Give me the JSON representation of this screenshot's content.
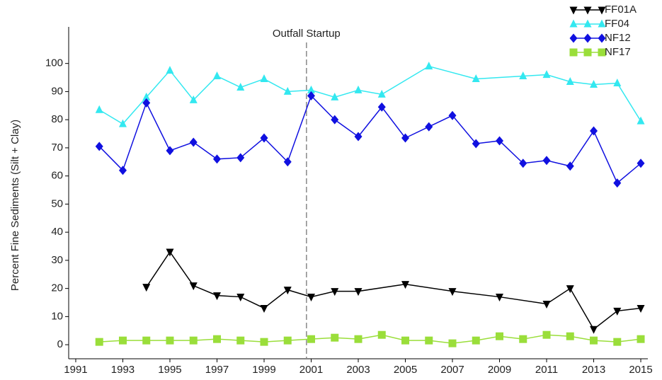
{
  "chart_data": {
    "type": "line",
    "y_label": "Percent Fine Sediments (Silt + Clay)",
    "xlim": [
      1990.7,
      2015.3
    ],
    "ylim": [
      -5,
      113
    ],
    "xticks": [
      1991,
      1993,
      1995,
      1997,
      1999,
      2001,
      2003,
      2005,
      2007,
      2009,
      2011,
      2013,
      2015
    ],
    "yticks": [
      0,
      10,
      20,
      30,
      40,
      50,
      60,
      70,
      80,
      90,
      100
    ],
    "legend": "top-right",
    "annotation": {
      "text": "Outfall Startup",
      "x": 2000.8
    },
    "series": [
      {
        "name": "FF01A",
        "color": "#000000",
        "symbol": "triangle-down",
        "x": [
          1994,
          1995,
          1996,
          1997,
          1998,
          1999,
          2000,
          2001,
          2002,
          2003,
          2005,
          2007,
          2009,
          2011,
          2012,
          2013,
          2014,
          2015
        ],
        "values": [
          20.5,
          33,
          21,
          17.5,
          17,
          13,
          19.5,
          17,
          19,
          19,
          21.5,
          19,
          17,
          14.5,
          20,
          5.5,
          12,
          13
        ]
      },
      {
        "name": "FF04",
        "color": "#33e8f0",
        "symbol": "triangle-up",
        "x": [
          1992,
          1993,
          1994,
          1995,
          1996,
          1997,
          1998,
          1999,
          2000,
          2001,
          2002,
          2003,
          2004,
          2006,
          2008,
          2010,
          2011,
          2012,
          2013,
          2014,
          2015
        ],
        "values": [
          83.5,
          78.5,
          88,
          97.5,
          87,
          95.5,
          91.5,
          94.5,
          90,
          90.5,
          88,
          90.5,
          89,
          99,
          94.5,
          95.5,
          96,
          93.5,
          92.5,
          93,
          79.5
        ]
      },
      {
        "name": "NF12",
        "color": "#1010e0",
        "symbol": "diamond",
        "x": [
          1992,
          1993,
          1994,
          1995,
          1996,
          1997,
          1998,
          1999,
          2000,
          2001,
          2002,
          2003,
          2004,
          2005,
          2006,
          2007,
          2008,
          2009,
          2010,
          2011,
          2012,
          2013,
          2014,
          2015
        ],
        "values": [
          70.5,
          62,
          86,
          69,
          72,
          66,
          66.5,
          73.5,
          65,
          88.5,
          80,
          74,
          84.5,
          73.5,
          77.5,
          81.5,
          71.5,
          72.5,
          64.5,
          65.5,
          63.5,
          76,
          57.5,
          64.5
        ]
      },
      {
        "name": "NF17",
        "color": "#9ade3a",
        "symbol": "square",
        "x": [
          1992,
          1993,
          1994,
          1995,
          1996,
          1997,
          1998,
          1999,
          2000,
          2001,
          2002,
          2003,
          2004,
          2005,
          2006,
          2007,
          2008,
          2009,
          2010,
          2011,
          2012,
          2013,
          2014,
          2015
        ],
        "values": [
          1,
          1.5,
          1.5,
          1.5,
          1.5,
          2,
          1.5,
          1,
          1.5,
          2,
          2.5,
          2,
          3.5,
          1.5,
          1.5,
          0.5,
          1.5,
          3,
          2,
          3.5,
          3,
          1.5,
          1,
          2
        ]
      }
    ]
  }
}
